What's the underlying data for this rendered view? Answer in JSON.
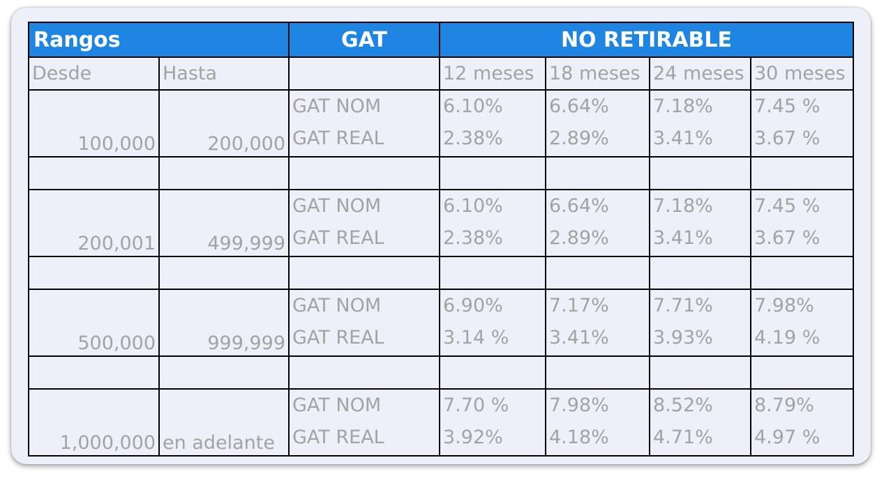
{
  "header": {
    "rangos": "Rangos",
    "gat": "GAT",
    "no_retirable": "NO RETIRABLE"
  },
  "subheader": {
    "desde": "Desde",
    "hasta": "Hasta",
    "terms": [
      "12 meses",
      "18 meses",
      "24 meses",
      "30 meses"
    ]
  },
  "row_labels": {
    "nom": "GAT NOM",
    "real": "GAT REAL"
  },
  "ranges": [
    {
      "desde": "100,000",
      "hasta": "200,000",
      "nom": [
        "6.10%",
        "6.64%",
        "7.18%",
        "7.45 %"
      ],
      "real": [
        "2.38%",
        "2.89%",
        "3.41%",
        "3.67 %"
      ]
    },
    {
      "desde": "200,001",
      "hasta": "499,999",
      "nom": [
        "6.10%",
        "6.64%",
        "7.18%",
        "7.45 %"
      ],
      "real": [
        "2.38%",
        "2.89%",
        "3.41%",
        "3.67 %"
      ]
    },
    {
      "desde": "500,000",
      "hasta": "999,999",
      "nom": [
        "6.90%",
        "7.17%",
        "7.71%",
        "7.98%"
      ],
      "real": [
        "3.14 %",
        "3.41%",
        "3.93%",
        "4.19 %"
      ]
    },
    {
      "desde": "1,000,000",
      "hasta": "en adelante",
      "nom": [
        "7.70 %",
        "7.98%",
        "8.52%",
        "8.79%"
      ],
      "real": [
        "3.92%",
        "4.18%",
        "4.71%",
        "4.97 %"
      ]
    }
  ],
  "colors": {
    "header_blue": "#1f85e2",
    "cell_background": "#edf0f8",
    "text_gray": "#a3a3a3",
    "border": "#000000"
  }
}
